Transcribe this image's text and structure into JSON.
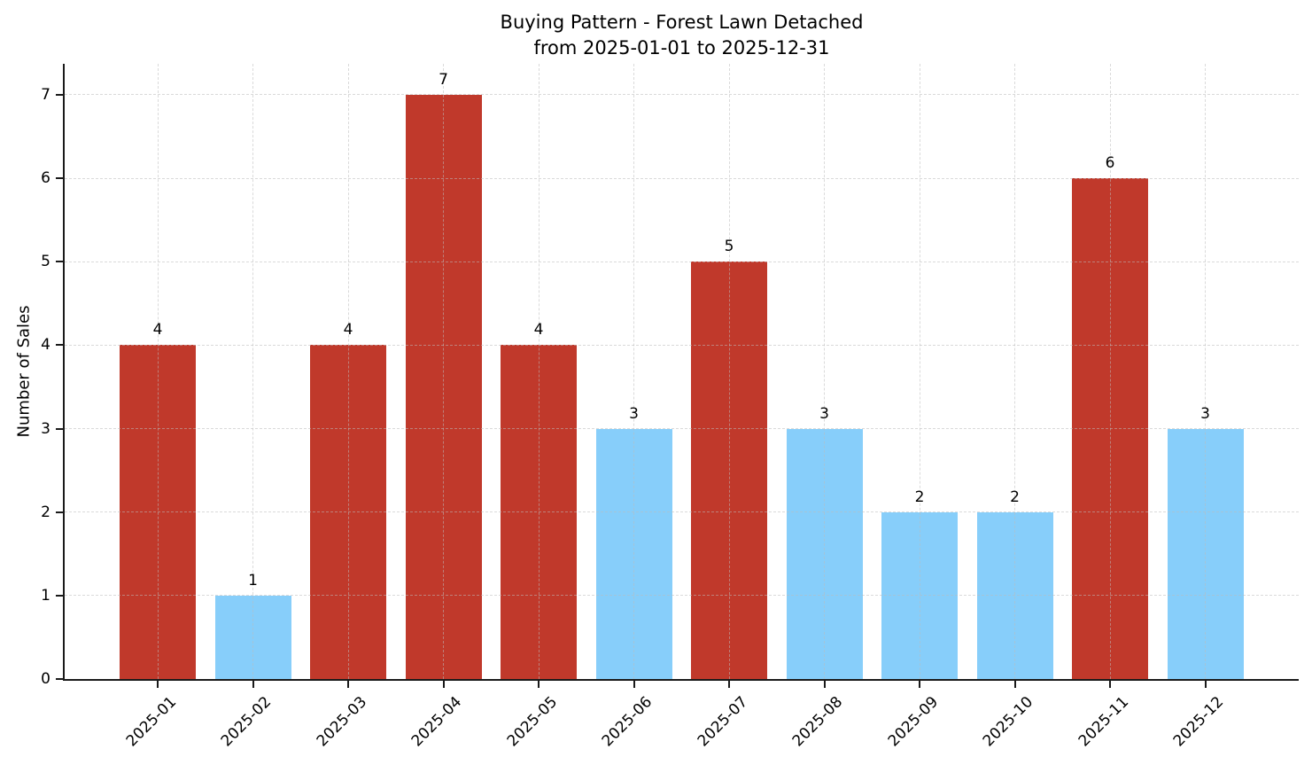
{
  "chart_data": {
    "type": "bar",
    "title": "Buying Pattern - Forest Lawn Detached",
    "subtitle": "from 2025-01-01 to 2025-12-31",
    "xlabel": "",
    "ylabel": "Number of Sales",
    "categories": [
      "2025-01",
      "2025-02",
      "2025-03",
      "2025-04",
      "2025-05",
      "2025-06",
      "2025-07",
      "2025-08",
      "2025-09",
      "2025-10",
      "2025-11",
      "2025-12"
    ],
    "values": [
      4,
      1,
      4,
      7,
      4,
      3,
      5,
      3,
      2,
      2,
      6,
      3
    ],
    "bar_colors": [
      "#c0392b",
      "#87cefa",
      "#c0392b",
      "#c0392b",
      "#c0392b",
      "#87cefa",
      "#c0392b",
      "#87cefa",
      "#87cefa",
      "#87cefa",
      "#c0392b",
      "#87cefa"
    ],
    "value_labels": [
      "4",
      "1",
      "4",
      "7",
      "4",
      "3",
      "5",
      "3",
      "2",
      "2",
      "6",
      "3"
    ],
    "yticks": [
      "0",
      "1",
      "2",
      "3",
      "4",
      "5",
      "6",
      "7"
    ],
    "ylim": [
      0,
      7.37
    ],
    "grid": "both, dashed, drawn above bars",
    "legend": "none",
    "colors": {
      "bar_red": "#c0392b",
      "bar_blue": "#87cefa",
      "axis": "#1a1a1a",
      "grid": "#d9d9d9",
      "background": "#ffffff",
      "text": "#000000"
    }
  }
}
